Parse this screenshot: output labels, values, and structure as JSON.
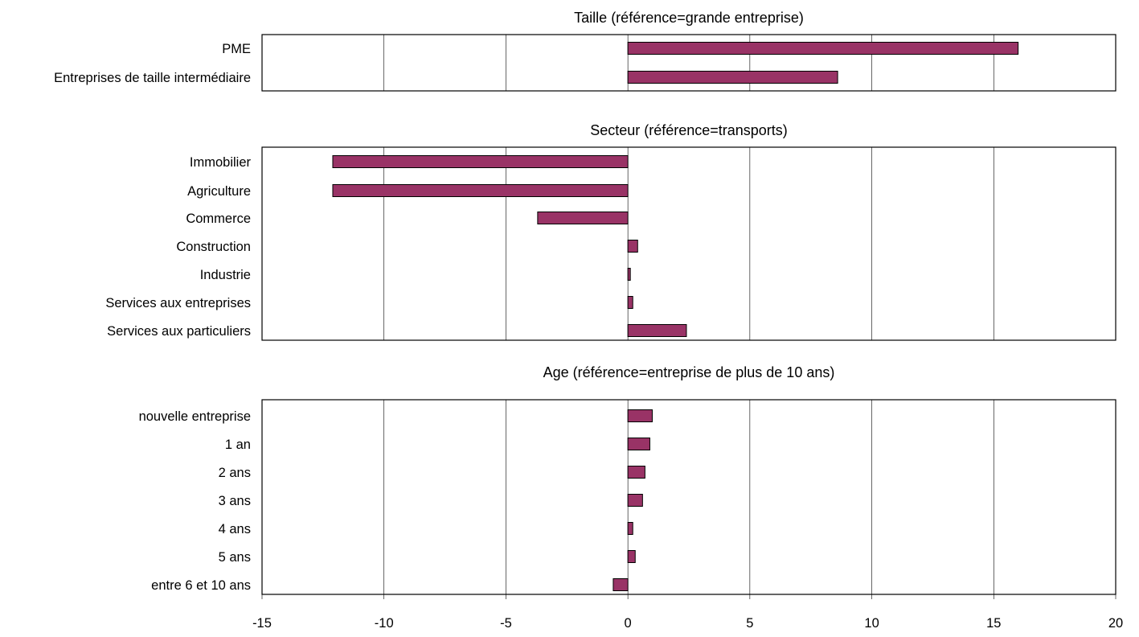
{
  "chart_data": {
    "type": "bar",
    "orientation": "horizontal",
    "xlim": [
      -15,
      20
    ],
    "x_ticks": [
      "-15",
      "-10",
      "-5",
      "0",
      "5",
      "10",
      "15",
      "20"
    ],
    "grid": true,
    "bar_color": "#993366",
    "panels": [
      {
        "title": "Taille (référence=grande entreprise)",
        "categories": [
          "PME",
          "Entreprises de taille intermédiaire"
        ],
        "values": [
          16.0,
          8.6
        ]
      },
      {
        "title": "Secteur (référence=transports)",
        "categories": [
          "Immobilier",
          "Agriculture",
          "Commerce",
          "Construction",
          "Industrie",
          "Services aux entreprises",
          "Services aux particuliers"
        ],
        "values": [
          -12.1,
          -12.1,
          -3.7,
          0.4,
          0.1,
          0.2,
          2.4
        ]
      },
      {
        "title": "Age (référence=entreprise de plus de 10 ans)",
        "categories": [
          "nouvelle entreprise",
          "1 an",
          "2 ans",
          "3 ans",
          "4 ans ",
          "5 ans ",
          "entre 6 et 10 ans"
        ],
        "values": [
          1.0,
          0.9,
          0.7,
          0.6,
          0.2,
          0.3,
          -0.6
        ]
      }
    ]
  }
}
